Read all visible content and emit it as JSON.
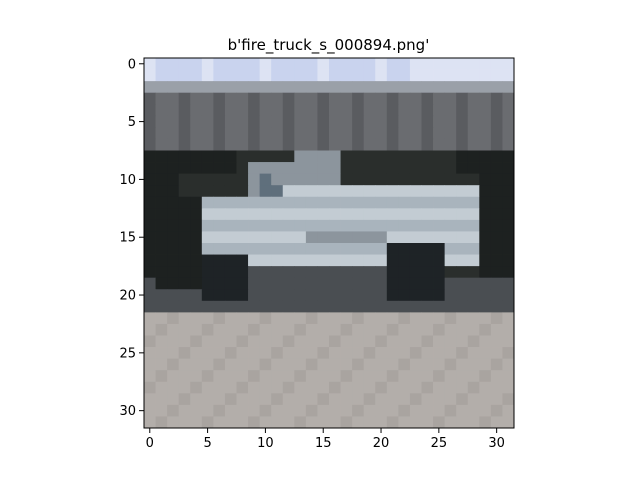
{
  "figure": {
    "title": "b'fire_truck_s_000894.png'"
  },
  "image": {
    "description_icon": "pixelated-vehicle-image",
    "grid_size": [
      32,
      32
    ],
    "palette": {
      "sky": "#c9d3ee",
      "sky_light": "#dde3f3",
      "roof_band": "#9aa0a8",
      "wall": "#6a6c70",
      "wall_dark": "#5a5c60",
      "shadow_band": "#2a2e2c",
      "shadow_dark": "#1d2120",
      "vehicle_body": "#a9b4bd",
      "vehicle_light": "#c3ccd3",
      "vehicle_mid": "#8c959d",
      "window": "#5f6f7c",
      "wheel": "#1e2326",
      "undercarriage": "#4a4e52",
      "ground": "#b3aeaa",
      "ground_dark": "#a9a4a0"
    }
  },
  "axes": {
    "x_ticks": [
      "0",
      "5",
      "10",
      "15",
      "20",
      "25",
      "30"
    ],
    "y_ticks": [
      "0",
      "5",
      "10",
      "15",
      "20",
      "25",
      "30"
    ]
  }
}
